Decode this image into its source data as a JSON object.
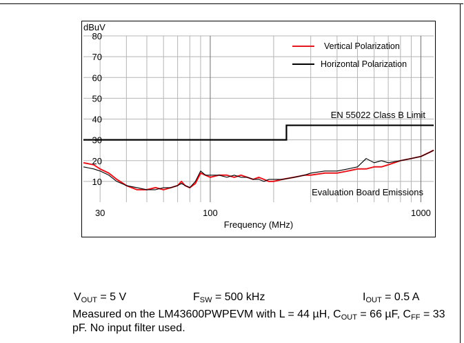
{
  "chart_data": {
    "type": "line",
    "y_unit_label": "dBuV",
    "xlabel": "Frequency (MHz)",
    "x_scale": "log",
    "xlim": [
      25,
      1150
    ],
    "ylim": [
      0,
      80
    ],
    "x_ticks": [
      {
        "value": 30,
        "label": "30"
      },
      {
        "value": 100,
        "label": "100"
      },
      {
        "value": 1000,
        "label": "1000"
      }
    ],
    "y_ticks": [
      10,
      20,
      30,
      40,
      50,
      60,
      70,
      80
    ],
    "grid": true,
    "legend_position": "top-right",
    "annotations": {
      "limit": "EN 55022 Class B Limit",
      "emissions": "Evaluation Board Emissions"
    },
    "limit_line": {
      "x": [
        25,
        230,
        230,
        1150
      ],
      "y": [
        30,
        30,
        37,
        37
      ],
      "color": "#000000"
    },
    "series": [
      {
        "name": "Vertical Polarization",
        "color": "#e8141c",
        "x": [
          25,
          28,
          30,
          33,
          36,
          40,
          45,
          50,
          55,
          60,
          65,
          70,
          73,
          76,
          80,
          85,
          90,
          95,
          100,
          110,
          120,
          130,
          140,
          150,
          160,
          170,
          180,
          190,
          200,
          220,
          250,
          280,
          300,
          350,
          400,
          450,
          500,
          550,
          600,
          650,
          700,
          800,
          900,
          1000,
          1100,
          1150
        ],
        "y": [
          19,
          18,
          16,
          14,
          11,
          8,
          6,
          6,
          7,
          6,
          7,
          8,
          10,
          8,
          7,
          9,
          14,
          13,
          12,
          13,
          13,
          12,
          13,
          12,
          11,
          12,
          11,
          10,
          10,
          11,
          12,
          13,
          13,
          14,
          14,
          15,
          16,
          16,
          17,
          17,
          18,
          20,
          21,
          22,
          24,
          25
        ]
      },
      {
        "name": "Horizontal Polarization",
        "color": "#000000",
        "x": [
          25,
          28,
          30,
          33,
          36,
          40,
          45,
          50,
          55,
          60,
          65,
          70,
          73,
          76,
          80,
          85,
          90,
          95,
          100,
          110,
          120,
          130,
          140,
          150,
          160,
          170,
          180,
          190,
          200,
          220,
          250,
          280,
          300,
          350,
          400,
          450,
          500,
          550,
          600,
          650,
          700,
          800,
          900,
          1000,
          1100,
          1150
        ],
        "y": [
          17,
          16,
          15,
          13,
          10,
          8,
          7,
          6,
          6,
          7,
          7,
          8,
          9,
          8,
          7,
          10,
          15,
          13,
          13,
          13,
          12,
          13,
          12,
          12,
          11,
          11,
          10,
          11,
          11,
          11,
          12,
          13,
          14,
          15,
          15,
          16,
          17,
          21,
          19,
          20,
          19,
          20,
          21,
          22,
          24,
          25
        ]
      }
    ]
  },
  "conditions": {
    "vout_label": "V",
    "vout_sub": "OUT",
    "vout_value": " = 5 V",
    "fsw_label": "F",
    "fsw_sub": "SW",
    "fsw_value": " = 500 kHz",
    "iout_label": "I",
    "iout_sub": "OUT",
    "iout_value": " = 0.5 A"
  },
  "note": {
    "part1": "Measured on the LM43600PWPEVM with L = 44 µH, C",
    "sub1": "OUT",
    "part2": " = 66 µF, C",
    "sub2": "FF",
    "part3": " = 33 pF. No input filter used."
  }
}
